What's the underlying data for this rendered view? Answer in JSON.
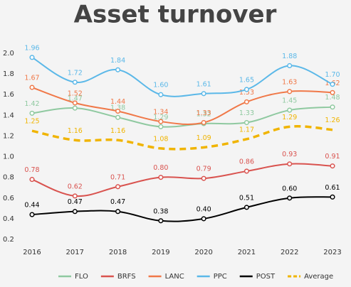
{
  "chart_data": {
    "type": "line",
    "title": "Asset turnover",
    "categories": [
      "2016",
      "2017",
      "2018",
      "2019",
      "2020",
      "2021",
      "2022",
      "2023"
    ],
    "ylim": [
      0.2,
      2.0
    ],
    "yticks": [
      0.2,
      0.4,
      0.6,
      0.8,
      {
        "value": 1,
        "label": "1.0"
      },
      1.2,
      1.4,
      1.6,
      1.8,
      {
        "value": 2,
        "label": "2.0"
      }
    ],
    "grid": false,
    "legend": "bottom",
    "series": [
      {
        "name": "FLO",
        "color": "#8fc9a0",
        "values": [
          1.42,
          1.47,
          1.38,
          1.29,
          1.32,
          1.33,
          1.45,
          1.48
        ],
        "value_labels": [
          "1.42",
          "1.47",
          "1.38",
          "1.29",
          "1.32",
          "1.33",
          "1.45",
          "1.48"
        ]
      },
      {
        "name": "BRFS",
        "color": "#d9534f",
        "values": [
          0.78,
          0.62,
          0.71,
          0.8,
          0.79,
          0.86,
          0.93,
          0.91
        ],
        "value_labels": [
          "0.78",
          "0.62",
          "0.71",
          "0.80",
          "0.79",
          "0.86",
          "0.93",
          "0.91"
        ]
      },
      {
        "name": "LANC",
        "color": "#f07848",
        "values": [
          1.67,
          1.52,
          1.44,
          1.34,
          1.33,
          1.53,
          1.63,
          1.62
        ],
        "value_labels": [
          "1.67",
          "1.52",
          "1.44",
          "1.34",
          "1.33",
          "1.53",
          "1.63",
          "1.62"
        ]
      },
      {
        "name": "PPC",
        "color": "#5bb8e8",
        "values": [
          1.96,
          1.72,
          1.84,
          1.6,
          1.61,
          1.65,
          1.88,
          1.7
        ],
        "value_labels": [
          "1.96",
          "1.72",
          "1.84",
          "1.60",
          "1.61",
          "1.65",
          "1.88",
          "1.70"
        ]
      },
      {
        "name": "POST",
        "color": "#000000",
        "values": [
          0.44,
          0.47,
          0.47,
          0.38,
          0.4,
          0.51,
          0.6,
          0.61
        ],
        "value_labels": [
          "0.44",
          "0.47",
          "0.47",
          "0.38",
          "0.40",
          "0.51",
          "0.60",
          "0.61"
        ]
      },
      {
        "name": "Average",
        "color": "#f0b400",
        "dashed": true,
        "values": [
          1.25,
          1.16,
          1.16,
          1.08,
          1.09,
          1.17,
          1.29,
          1.26
        ],
        "value_labels": [
          "1.25",
          "1.16",
          "1.16",
          "1.08",
          "1.09",
          "1.17",
          "1.29",
          "1.26"
        ]
      }
    ]
  }
}
